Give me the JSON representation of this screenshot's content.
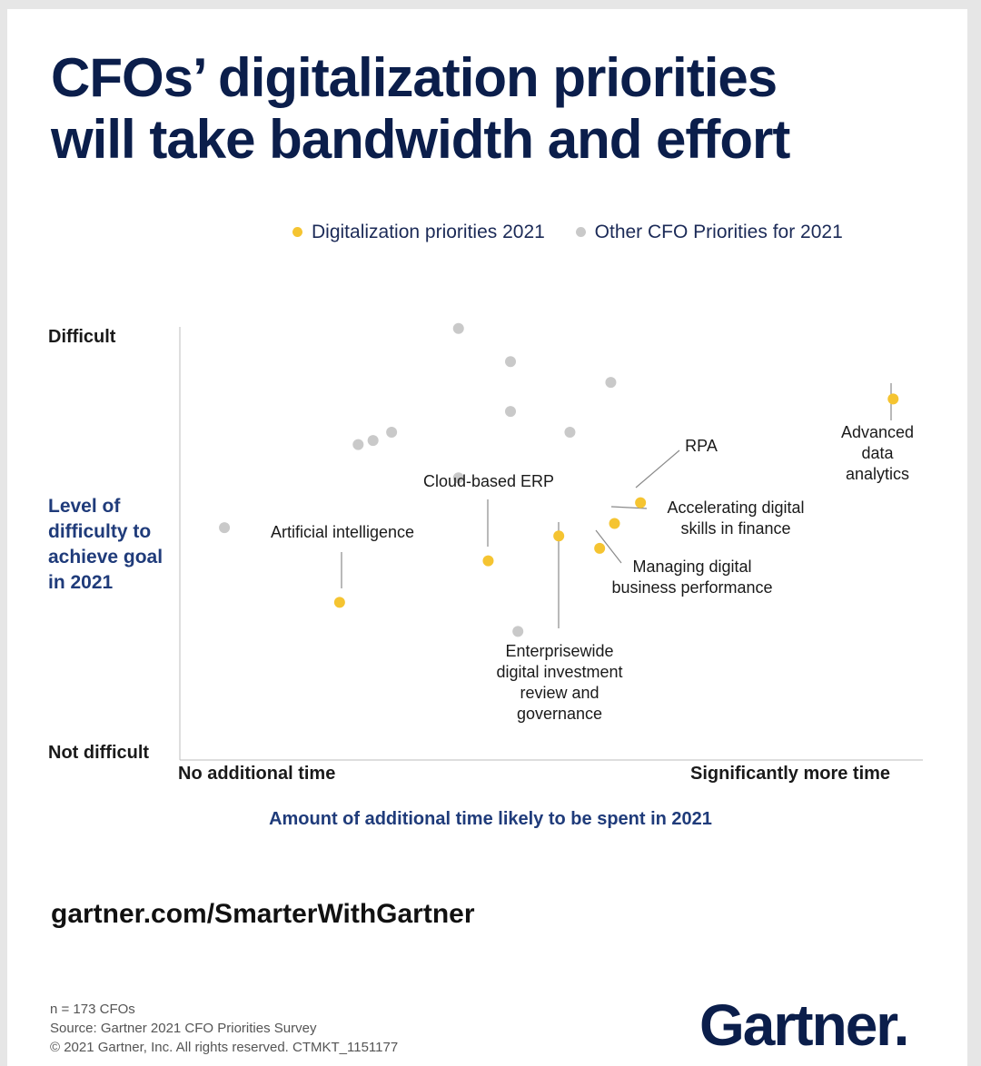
{
  "page": {
    "title_line1": "CFOs’ digitalization priorities",
    "title_line2": "will take bandwidth and effort",
    "url": "gartner.com/SmarterWithGartner",
    "footnote": [
      "n = 173 CFOs",
      "Source: Gartner 2021 CFO Priorities Survey",
      "© 2021 Gartner, Inc. All rights reserved. CTMKT_1151177"
    ],
    "logo_text": "Gartner."
  },
  "colors": {
    "digital": "#f5c431",
    "other": "#c9c9c9",
    "title": "#0b1e4b",
    "axis_label": "#1f3b7a"
  },
  "chart_data": {
    "type": "scatter",
    "title": "CFOs’ digitalization priorities will take bandwidth and effort",
    "xlabel": "Amount of additional time likely to be spent in 2021",
    "ylabel": "Level of difficulty to achieve goal in 2021",
    "x_tick_labels": [
      "No additional time",
      "Significantly more time"
    ],
    "y_tick_labels": [
      "Not difficult",
      "Difficult"
    ],
    "xlim": [
      0,
      100
    ],
    "ylim": [
      0,
      100
    ],
    "legend": {
      "placement": "top-right"
    },
    "series": [
      {
        "name": "Digitalization priorities 2021",
        "color": "#f5c431",
        "points": [
          {
            "label": "Advanced data analytics",
            "x": 96,
            "y": 87
          },
          {
            "label": "RPA",
            "x": 62,
            "y": 62
          },
          {
            "label": "Accelerating digital skills in finance",
            "x": 58.5,
            "y": 57
          },
          {
            "label": "Managing digital business performance",
            "x": 56.5,
            "y": 51
          },
          {
            "label": "Enterprisewide digital investment review and governance",
            "x": 51,
            "y": 54
          },
          {
            "label": "Cloud-based ERP",
            "x": 41.5,
            "y": 48
          },
          {
            "label": "Artificial intelligence",
            "x": 21.5,
            "y": 38
          }
        ]
      },
      {
        "name": "Other CFO Priorities for 2021",
        "color": "#c9c9c9",
        "points": [
          {
            "x": 37.5,
            "y": 104
          },
          {
            "x": 44.5,
            "y": 96
          },
          {
            "x": 58,
            "y": 91
          },
          {
            "x": 44.5,
            "y": 84
          },
          {
            "x": 52.5,
            "y": 79
          },
          {
            "x": 28.5,
            "y": 79
          },
          {
            "x": 26,
            "y": 77
          },
          {
            "x": 24,
            "y": 76
          },
          {
            "x": 37.5,
            "y": 68
          },
          {
            "x": 6,
            "y": 56
          },
          {
            "x": 45.5,
            "y": 31
          }
        ]
      }
    ]
  }
}
